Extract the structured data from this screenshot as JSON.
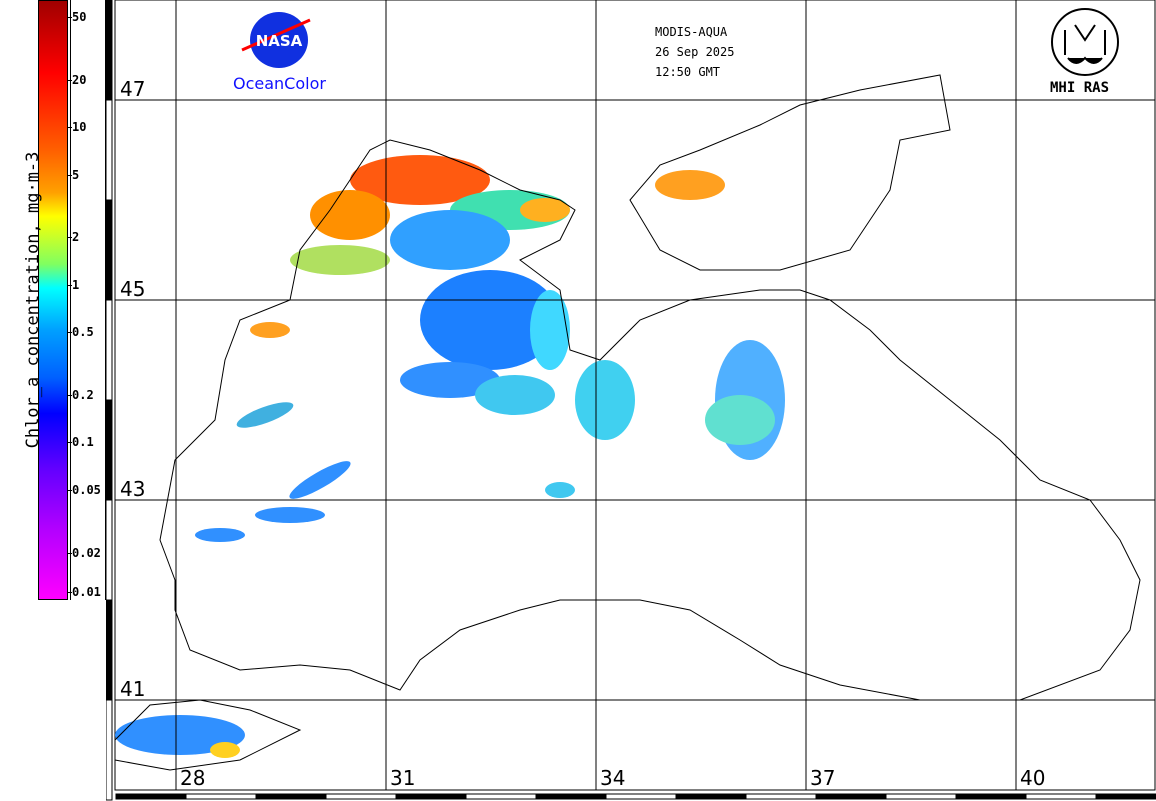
{
  "colorbar": {
    "title": "Chlor_a concentration, mg·m-3",
    "ticks": [
      "50",
      "20",
      "10",
      "5",
      "2",
      "1",
      "0.5",
      "0.2",
      "0.1",
      "0.05",
      "0.02",
      "0.01"
    ],
    "range_mg_m3": [
      0.01,
      64
    ]
  },
  "header": {
    "sensor": "MODIS-AQUA",
    "date": "26 Sep 2025",
    "time": "12:50 GMT"
  },
  "logos": {
    "nasa_text": "NASA",
    "oceancolor_label": "OceanColor",
    "mhi_label": "MHI RAS"
  },
  "grid": {
    "latitudes": [
      "47",
      "45",
      "43",
      "41"
    ],
    "longitudes": [
      "28",
      "31",
      "34",
      "37",
      "40"
    ]
  }
}
